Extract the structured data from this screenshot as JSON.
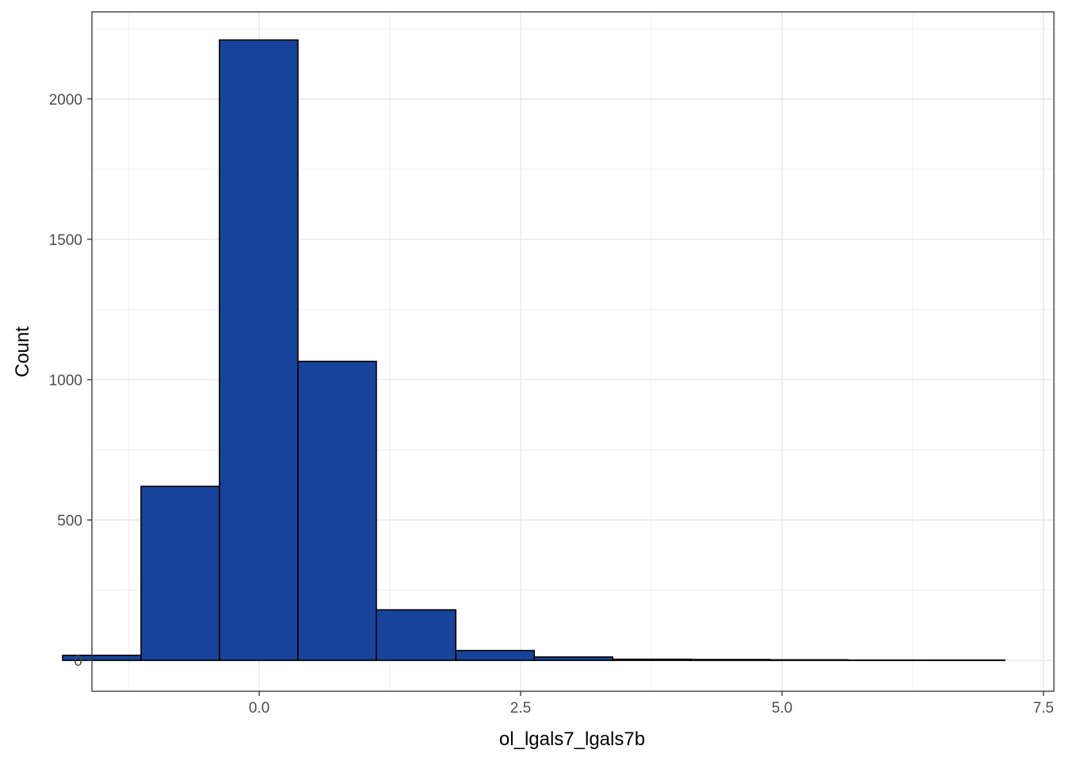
{
  "chart_data": {
    "type": "bar",
    "subtype": "histogram",
    "title": "",
    "xlabel": "ol_lgals7_lgals7b",
    "ylabel": "Count",
    "xlim": [
      -1.6,
      7.6
    ],
    "ylim": [
      -110,
      2310
    ],
    "x_ticks": [
      0.0,
      2.5,
      5.0,
      7.5
    ],
    "x_tick_labels": [
      "0.0",
      "2.5",
      "5.0",
      "7.5"
    ],
    "y_ticks": [
      0,
      500,
      1000,
      1500,
      2000
    ],
    "y_tick_labels": [
      "0",
      "500",
      "1000",
      "1500",
      "2000"
    ],
    "grid": true,
    "bar_color": "#17449A",
    "bar_edge_color": "#000000",
    "bins": [
      {
        "x0": -1.88,
        "x1": -1.13,
        "count": 18
      },
      {
        "x0": -1.13,
        "x1": -0.38,
        "count": 620
      },
      {
        "x0": -0.38,
        "x1": 0.37,
        "count": 2210
      },
      {
        "x0": 0.37,
        "x1": 1.12,
        "count": 1065
      },
      {
        "x0": 1.12,
        "x1": 1.88,
        "count": 180
      },
      {
        "x0": 1.88,
        "x1": 2.63,
        "count": 35
      },
      {
        "x0": 2.63,
        "x1": 3.38,
        "count": 12
      },
      {
        "x0": 3.38,
        "x1": 4.13,
        "count": 4
      },
      {
        "x0": 4.13,
        "x1": 4.88,
        "count": 3
      },
      {
        "x0": 4.88,
        "x1": 5.63,
        "count": 2
      },
      {
        "x0": 5.63,
        "x1": 6.38,
        "count": 1
      },
      {
        "x0": 6.38,
        "x1": 7.13,
        "count": 1
      }
    ]
  }
}
